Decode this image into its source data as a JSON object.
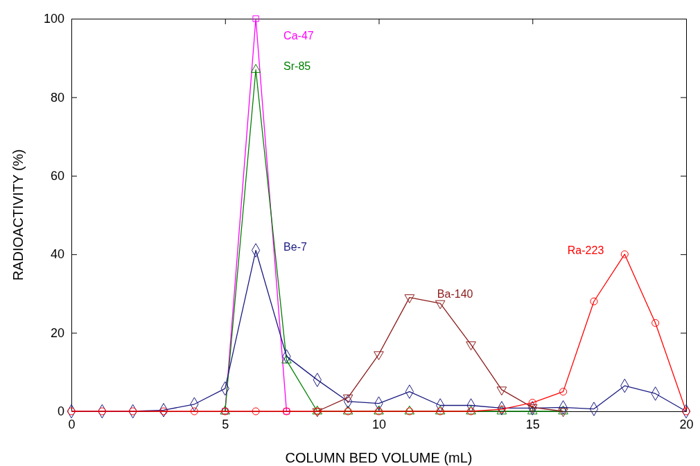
{
  "chart_data": {
    "type": "line",
    "xlabel": "COLUMN BED VOLUME (mL)",
    "ylabel": "RADIOACTIVITY (%)",
    "x": [
      0,
      1,
      2,
      3,
      4,
      5,
      6,
      7,
      8,
      9,
      10,
      11,
      12,
      13,
      14,
      15,
      16,
      17,
      18,
      19,
      20
    ],
    "xlim": [
      0,
      20
    ],
    "xticks": [
      0,
      5,
      10,
      15,
      20
    ],
    "ylim": [
      0,
      100
    ],
    "yticks": [
      0,
      20,
      40,
      60,
      80,
      100
    ],
    "grid": false,
    "series": [
      {
        "name": "Ca-47",
        "color": "#ff00ff",
        "marker": "square",
        "values": [
          null,
          null,
          null,
          null,
          null,
          0,
          100,
          0,
          null,
          null,
          null,
          null,
          null,
          null,
          null,
          null,
          null,
          null,
          null,
          null,
          null
        ]
      },
      {
        "name": "Sr-85",
        "color": "#008000",
        "marker": "triangle",
        "values": [
          null,
          null,
          null,
          null,
          null,
          0,
          87,
          13,
          0,
          0,
          0,
          0,
          0,
          0,
          0,
          0,
          0,
          null,
          null,
          null,
          null
        ]
      },
      {
        "name": "Be-7",
        "color": "#1a1a80",
        "marker": "diamond",
        "values": [
          0,
          0,
          0,
          0.3,
          1.8,
          5.8,
          41,
          14,
          8,
          2.5,
          2,
          5,
          1.5,
          1.5,
          0.8,
          0.8,
          1,
          0.6,
          6.5,
          4.5,
          0
        ]
      },
      {
        "name": "Ba-140",
        "color": "#8b1a1a",
        "marker": "triangle-down",
        "values": [
          null,
          null,
          null,
          null,
          null,
          null,
          null,
          null,
          0,
          3.5,
          14.5,
          29,
          27.5,
          17,
          5.5,
          1,
          0,
          null,
          null,
          null,
          null
        ]
      },
      {
        "name": "Ra-223",
        "color": "#ff0000",
        "marker": "circle",
        "values": [
          0,
          0,
          0,
          0,
          0,
          0,
          0,
          0,
          0,
          0,
          0,
          0,
          0,
          0,
          0.5,
          2.2,
          5,
          28,
          40,
          22.5,
          0
        ]
      }
    ]
  }
}
